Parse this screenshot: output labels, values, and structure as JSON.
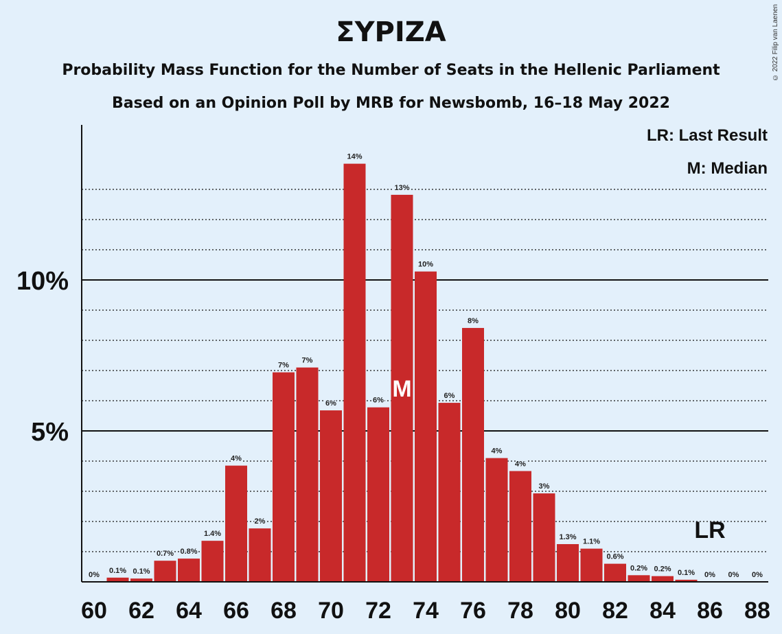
{
  "title": "ΣΥΡΙΖΑ",
  "subtitle1": "Probability Mass Function for the Number of Seats in the Hellenic Parliament",
  "subtitle2": "Based on an Opinion Poll by MRB for Newsbomb, 16–18 May 2022",
  "copyright": "© 2022 Filip van Laenen",
  "legend": {
    "last_result": "LR: Last Result",
    "median": "M: Median"
  },
  "colors": {
    "bar": "#c8292a",
    "background": "#e3f0fb"
  },
  "chart_data": {
    "type": "bar",
    "x": [
      60,
      61,
      62,
      63,
      64,
      65,
      66,
      67,
      68,
      69,
      70,
      71,
      72,
      73,
      74,
      75,
      76,
      77,
      78,
      79,
      80,
      81,
      82,
      83,
      84,
      85,
      86,
      87,
      88
    ],
    "values": [
      0,
      0.14,
      0.11,
      0.7,
      0.77,
      1.36,
      3.85,
      1.77,
      6.94,
      7.1,
      5.68,
      13.85,
      5.78,
      12.82,
      10.28,
      5.93,
      8.41,
      4.1,
      3.67,
      2.93,
      1.25,
      1.1,
      0.6,
      0.22,
      0.19,
      0.07,
      0,
      0,
      0
    ],
    "labels": [
      "0%",
      "0.1%",
      "0.1%",
      "0.7%",
      "0.8%",
      "1.4%",
      "4%",
      "2%",
      "7%",
      "7%",
      "6%",
      "14%",
      "6%",
      "13%",
      "10%",
      "6%",
      "8%",
      "4%",
      "4%",
      "3%",
      "1.3%",
      "1.1%",
      "0.6%",
      "0.2%",
      "0.2%",
      "0.1%",
      "0%",
      "0%",
      "0%"
    ],
    "x_ticks": [
      60,
      62,
      64,
      66,
      68,
      70,
      72,
      74,
      76,
      78,
      80,
      82,
      84,
      86,
      88
    ],
    "y_ticks": [
      {
        "value": 5,
        "label": "5%"
      },
      {
        "value": 10,
        "label": "10%"
      }
    ],
    "y_gridlines_dotted": [
      1,
      2,
      3,
      4,
      6,
      7,
      8,
      9,
      11,
      12,
      13
    ],
    "ylim": [
      0,
      15.1
    ],
    "median": {
      "seats": 73,
      "label": "M"
    },
    "last_result": {
      "seats": 86,
      "label": "LR"
    },
    "grid": true
  }
}
